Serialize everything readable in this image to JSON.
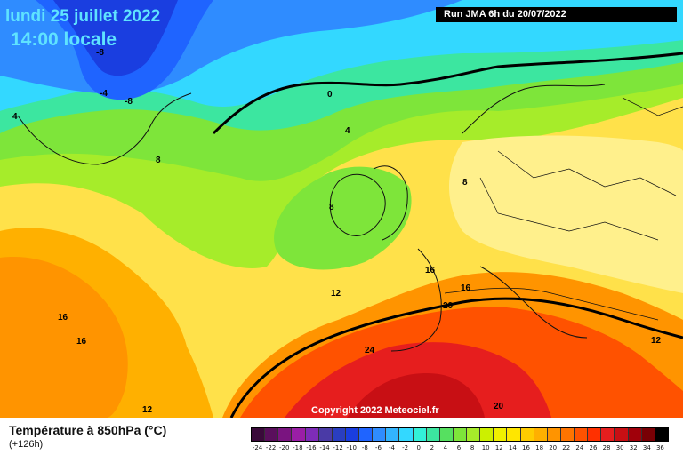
{
  "header": {
    "title_date": "lundi 25 juillet 2022",
    "title_time": "14:00 locale",
    "run_info": "Run JMA 6h du 20/07/2022"
  },
  "map": {
    "copyright": "Copyright 2022 Meteociel.fr",
    "contour_labels": [
      "-8",
      "-8",
      "-4",
      "4",
      "4",
      "0",
      "8",
      "8",
      "8",
      "12",
      "16",
      "16",
      "16",
      "16",
      "20",
      "24",
      "20",
      "12",
      "12"
    ]
  },
  "footer": {
    "param_title": "Température à 850hPa (°C)",
    "lead_time": "(+126h)"
  },
  "legend": {
    "ticks": [
      "-24",
      "-22",
      "-20",
      "-18",
      "-16",
      "-14",
      "-12",
      "-10",
      "-8",
      "-6",
      "-4",
      "-2",
      "0",
      "2",
      "4",
      "6",
      "8",
      "10",
      "12",
      "14",
      "16",
      "18",
      "20",
      "22",
      "24",
      "26",
      "28",
      "30",
      "32",
      "34",
      "36"
    ],
    "colors": [
      "#3a0a3a",
      "#5a0f5c",
      "#7a1480",
      "#9a1ea6",
      "#7e2cb8",
      "#4a3aa6",
      "#2a3ec0",
      "#1a3ee0",
      "#1f64ff",
      "#2f8cff",
      "#33b4ff",
      "#33d8ff",
      "#33f0d8",
      "#3ce6a0",
      "#56e060",
      "#7ee53a",
      "#a6ec2a",
      "#ccf000",
      "#f0f000",
      "#ffe600",
      "#ffcc00",
      "#ffb000",
      "#ff9400",
      "#ff7400",
      "#ff5200",
      "#ff3000",
      "#e61e1e",
      "#c80f14",
      "#a0000a",
      "#780005",
      "#000000"
    ]
  }
}
